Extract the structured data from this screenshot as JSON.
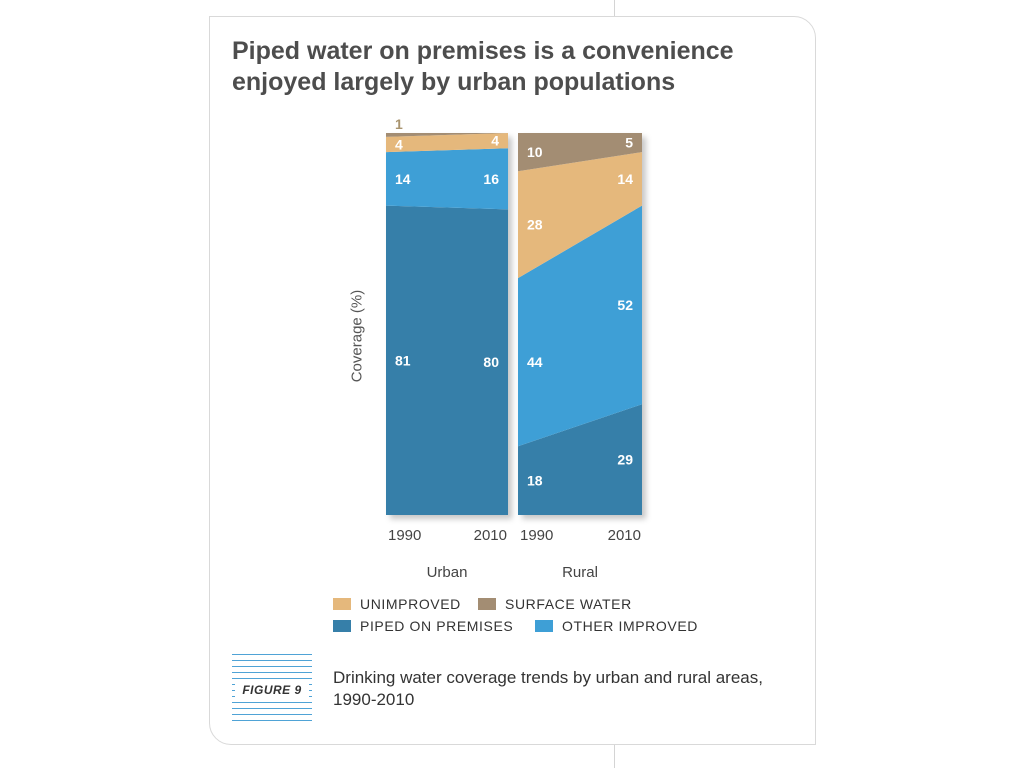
{
  "title": "Piped water on premises is a convenience enjoyed largely by urban populations",
  "figure_label": "FIGURE 9",
  "caption": "Drinking water coverage trends by urban and rural areas, 1990-2010",
  "colors": {
    "unimproved": "#e5b87c",
    "surface_water": "#a38d73",
    "piped_on_premises": "#367fa9",
    "other_improved": "#3e9fd6"
  },
  "chart_data": {
    "type": "area",
    "ylabel": "Coverage (%)",
    "ylim": [
      0,
      100
    ],
    "stack_order": [
      "piped_on_premises",
      "other_improved",
      "unimproved",
      "surface_water"
    ],
    "groups": [
      {
        "name": "Urban",
        "x": [
          "1990",
          "2010"
        ],
        "series": [
          {
            "key": "piped_on_premises",
            "values": [
              81,
              80
            ]
          },
          {
            "key": "other_improved",
            "values": [
              14,
              16
            ]
          },
          {
            "key": "unimproved",
            "values": [
              4,
              4
            ]
          },
          {
            "key": "surface_water",
            "values": [
              1,
              0
            ]
          }
        ]
      },
      {
        "name": "Rural",
        "x": [
          "1990",
          "2010"
        ],
        "series": [
          {
            "key": "piped_on_premises",
            "values": [
              18,
              29
            ]
          },
          {
            "key": "other_improved",
            "values": [
              44,
              52
            ]
          },
          {
            "key": "unimproved",
            "values": [
              28,
              14
            ]
          },
          {
            "key": "surface_water",
            "values": [
              10,
              5
            ]
          }
        ]
      }
    ],
    "legend": [
      {
        "key": "unimproved",
        "label": "UNIMPROVED"
      },
      {
        "key": "surface_water",
        "label": "SURFACE WATER"
      },
      {
        "key": "piped_on_premises",
        "label": "PIPED ON PREMISES"
      },
      {
        "key": "other_improved",
        "label": "OTHER IMPROVED"
      }
    ]
  }
}
